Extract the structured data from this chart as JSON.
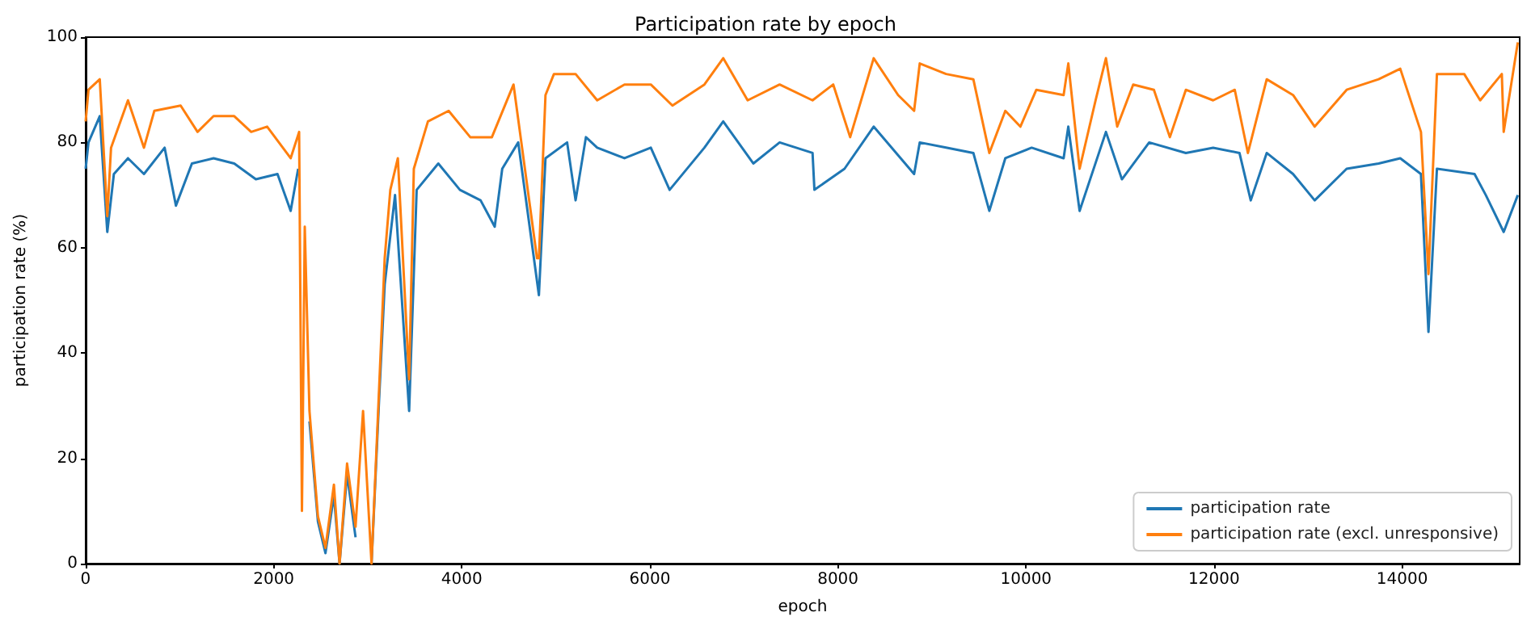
{
  "chart_data": {
    "type": "line",
    "title": "Participation rate by epoch",
    "xlabel": "epoch",
    "ylabel": "participation rate (%)",
    "xlim": [
      0,
      15250
    ],
    "xticks": [
      0,
      2000,
      4000,
      6000,
      8000,
      10000,
      12000,
      14000
    ],
    "ylim": [
      0,
      100
    ],
    "yticks": [
      0,
      20,
      40,
      60,
      80,
      100
    ],
    "grid": false,
    "legend": "bottom right",
    "series": [
      {
        "name": "participation rate",
        "color": "#1f77b4",
        "x": [
          0,
          30,
          150,
          230,
          300,
          450,
          620,
          840,
          960,
          1130,
          1360,
          1580,
          1810,
          2040,
          2180,
          2260,
          2300,
          2330,
          2380,
          2470,
          2550,
          2640,
          2700,
          2780,
          2870,
          2950,
          3040,
          3120,
          3180,
          3290,
          3440,
          3520,
          3750,
          3980,
          4200,
          4350,
          4430,
          4600,
          4820,
          4890,
          5120,
          5210,
          5320,
          5440,
          5730,
          6010,
          6210,
          6580,
          6780,
          7100,
          7380,
          7730,
          7750,
          8070,
          8380,
          8810,
          8870,
          9160,
          9440,
          9610,
          9780,
          10060,
          10400,
          10450,
          10570,
          10850,
          11020,
          11310,
          11700,
          11990,
          12270,
          12390,
          12560,
          12840,
          13070,
          13410,
          13750,
          13980,
          14200,
          14280,
          14370,
          14770,
          14890,
          15080,
          15230
        ],
        "values": [
          75,
          80,
          85,
          63,
          74,
          77,
          74,
          79,
          68,
          76,
          77,
          76,
          73,
          74,
          67,
          75,
          null,
          null,
          27,
          8,
          2,
          13,
          0,
          17,
          5,
          null,
          0,
          31,
          53,
          70,
          29,
          71,
          76,
          71,
          69,
          64,
          75,
          80,
          51,
          77,
          80,
          69,
          81,
          79,
          77,
          79,
          71,
          79,
          84,
          76,
          80,
          78,
          71,
          75,
          83,
          74,
          80,
          79,
          78,
          67,
          77,
          79,
          77,
          83,
          67,
          82,
          73,
          80,
          78,
          79,
          78,
          69,
          78,
          74,
          69,
          75,
          76,
          77,
          74,
          44,
          75,
          74,
          70,
          63,
          70
        ]
      },
      {
        "name": "participation rate (excl. unresponsive)",
        "color": "#ff7f0e",
        "x": [
          0,
          30,
          150,
          230,
          270,
          450,
          620,
          730,
          1010,
          1190,
          1360,
          1580,
          1760,
          1930,
          2180,
          2270,
          2300,
          2330,
          2380,
          2470,
          2550,
          2640,
          2700,
          2780,
          2870,
          2950,
          3040,
          3120,
          3180,
          3240,
          3320,
          3440,
          3490,
          3640,
          3860,
          4090,
          4320,
          4550,
          4800,
          4820,
          4890,
          4980,
          5210,
          5440,
          5730,
          6010,
          6240,
          6580,
          6780,
          7040,
          7380,
          7730,
          7950,
          8130,
          8380,
          8640,
          8810,
          8870,
          9150,
          9440,
          9610,
          9780,
          9940,
          10110,
          10400,
          10450,
          10570,
          10740,
          10850,
          10970,
          11140,
          11360,
          11530,
          11700,
          11990,
          12220,
          12360,
          12560,
          12840,
          13070,
          13410,
          13750,
          13980,
          14200,
          14280,
          14370,
          14660,
          14830,
          15060,
          15080,
          15230
        ],
        "values": [
          84,
          90,
          92,
          66,
          79,
          88,
          79,
          86,
          87,
          82,
          85,
          85,
          82,
          83,
          77,
          82,
          10,
          64,
          29,
          9,
          3,
          15,
          0,
          19,
          7,
          29,
          0,
          33,
          58,
          71,
          77,
          35,
          75,
          84,
          86,
          81,
          81,
          91,
          58,
          58,
          89,
          93,
          93,
          88,
          91,
          91,
          87,
          91,
          96,
          88,
          91,
          88,
          91,
          81,
          96,
          89,
          86,
          95,
          93,
          92,
          78,
          86,
          83,
          90,
          89,
          95,
          75,
          88,
          96,
          83,
          91,
          90,
          81,
          90,
          88,
          90,
          78,
          92,
          89,
          83,
          90,
          92,
          94,
          82,
          55,
          93,
          93,
          88,
          93,
          82,
          99
        ]
      }
    ]
  }
}
